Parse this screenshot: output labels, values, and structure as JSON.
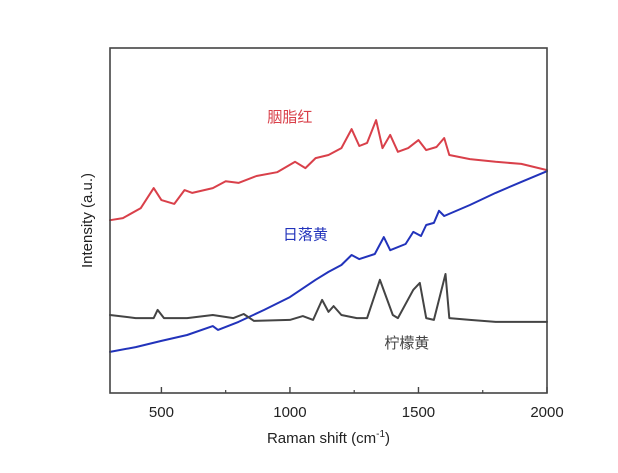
{
  "chart_data": {
    "type": "line",
    "title": "",
    "xlabel": "Raman shift (cm",
    "xlabel_sup": "-1",
    "xlabel_close": ")",
    "ylabel": "Intensity (a.u.)",
    "xlim": [
      300,
      2000
    ],
    "ylim": [
      0,
      100
    ],
    "x_ticks": [
      500,
      1000,
      1500,
      2000
    ],
    "x_tick_labels": [
      "500",
      "1000",
      "1500",
      "2000"
    ],
    "x_minor_ticks": [
      750,
      1250,
      1750
    ],
    "y_ticks_shown": false,
    "grid": false,
    "legend": "inline labels",
    "series": [
      {
        "name": "胭脂红",
        "color": "#d9404a",
        "x": [
          300,
          350,
          420,
          470,
          500,
          550,
          590,
          620,
          700,
          750,
          800,
          870,
          950,
          1020,
          1060,
          1100,
          1150,
          1200,
          1240,
          1270,
          1300,
          1335,
          1360,
          1390,
          1420,
          1460,
          1500,
          1530,
          1570,
          1600,
          1620,
          1700,
          1800,
          1900,
          2000
        ],
        "y": [
          50.1,
          50.7,
          53.6,
          59.4,
          55.9,
          54.8,
          58.8,
          58.0,
          59.4,
          61.4,
          60.9,
          62.9,
          64.0,
          67.0,
          65.2,
          68.1,
          69.0,
          71.0,
          76.5,
          71.6,
          72.5,
          79.1,
          71.0,
          74.8,
          69.9,
          71.0,
          73.3,
          70.4,
          71.3,
          73.9,
          69.0,
          67.8,
          67.0,
          66.4,
          64.6
        ]
      },
      {
        "name": "日落黄",
        "color": "#2233bb",
        "x": [
          300,
          400,
          500,
          600,
          700,
          720,
          800,
          900,
          1000,
          1100,
          1150,
          1200,
          1240,
          1270,
          1330,
          1365,
          1390,
          1450,
          1480,
          1510,
          1530,
          1560,
          1580,
          1600,
          1700,
          1800,
          1900,
          2000
        ],
        "y": [
          11.9,
          13.3,
          15.1,
          16.8,
          19.4,
          18.3,
          20.6,
          24.1,
          27.8,
          32.8,
          35.1,
          37.1,
          40.0,
          38.8,
          40.3,
          45.2,
          41.4,
          43.2,
          46.7,
          45.5,
          48.7,
          49.3,
          52.8,
          51.3,
          54.5,
          58.0,
          61.2,
          64.3
        ]
      },
      {
        "name": "柠檬黄",
        "color": "#444444",
        "x": [
          300,
          400,
          470,
          485,
          510,
          600,
          700,
          780,
          820,
          860,
          1000,
          1050,
          1090,
          1125,
          1150,
          1170,
          1200,
          1260,
          1300,
          1350,
          1400,
          1420,
          1480,
          1505,
          1530,
          1560,
          1605,
          1620,
          1700,
          1800,
          2000
        ],
        "y": [
          22.6,
          21.7,
          21.7,
          24.1,
          21.7,
          21.7,
          22.6,
          21.7,
          22.9,
          20.9,
          21.2,
          22.3,
          21.2,
          27.0,
          23.5,
          25.2,
          22.6,
          21.7,
          21.7,
          32.8,
          22.6,
          21.7,
          29.9,
          31.9,
          21.7,
          21.2,
          34.5,
          21.7,
          21.2,
          20.6,
          20.6
        ]
      }
    ],
    "annotations": [
      {
        "text": "胭脂红",
        "series": "胭脂红",
        "x": 1000,
        "y": 78.5
      },
      {
        "text": "日落黄",
        "series": "日落黄",
        "x": 1060,
        "y": 44.5
      },
      {
        "text": "柠檬黄",
        "series": "柠檬黄",
        "x": 1455,
        "y": 13.0
      }
    ]
  }
}
